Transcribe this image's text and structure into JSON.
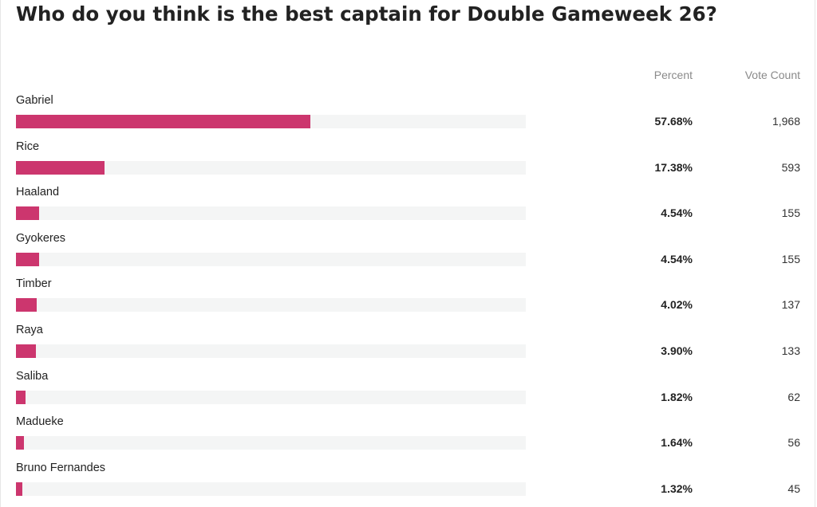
{
  "poll": {
    "title": "Who do you think is the best captain for Double Gameweek 26?",
    "header_percent": "Percent",
    "header_votes": "Vote Count",
    "bar_color": "#cc366e",
    "options": [
      {
        "name": "Gabriel",
        "percent": 57.68,
        "percent_label": "57.68%",
        "votes": "1,968"
      },
      {
        "name": "Rice",
        "percent": 17.38,
        "percent_label": "17.38%",
        "votes": "593"
      },
      {
        "name": "Haaland",
        "percent": 4.54,
        "percent_label": "4.54%",
        "votes": "155"
      },
      {
        "name": "Gyokeres",
        "percent": 4.54,
        "percent_label": "4.54%",
        "votes": "155"
      },
      {
        "name": "Timber",
        "percent": 4.02,
        "percent_label": "4.02%",
        "votes": "137"
      },
      {
        "name": "Raya",
        "percent": 3.9,
        "percent_label": "3.90%",
        "votes": "133"
      },
      {
        "name": "Saliba",
        "percent": 1.82,
        "percent_label": "1.82%",
        "votes": "62"
      },
      {
        "name": "Madueke",
        "percent": 1.64,
        "percent_label": "1.64%",
        "votes": "56"
      },
      {
        "name": "Bruno Fernandes",
        "percent": 1.32,
        "percent_label": "1.32%",
        "votes": "45"
      }
    ]
  }
}
